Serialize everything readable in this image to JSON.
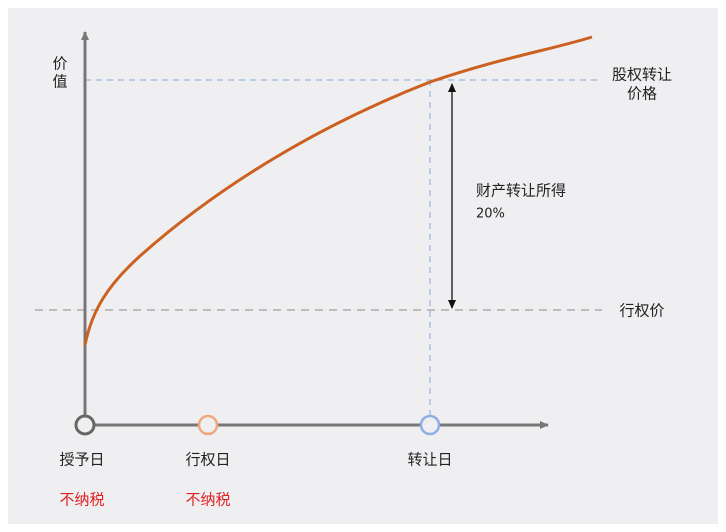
{
  "y_axis": {
    "label_lines": [
      "价",
      "值"
    ]
  },
  "levels": {
    "transfer_price": {
      "label_lines": [
        "股权转让",
        "价格"
      ]
    },
    "exercise_price": {
      "label": "行权价"
    }
  },
  "annotation": {
    "lines": [
      "财产转让所得",
      "20%"
    ]
  },
  "timeline": [
    {
      "label": "授予日",
      "tax": "不纳税"
    },
    {
      "label": "行权日",
      "tax": "不纳税"
    },
    {
      "label": "转让日"
    }
  ]
}
